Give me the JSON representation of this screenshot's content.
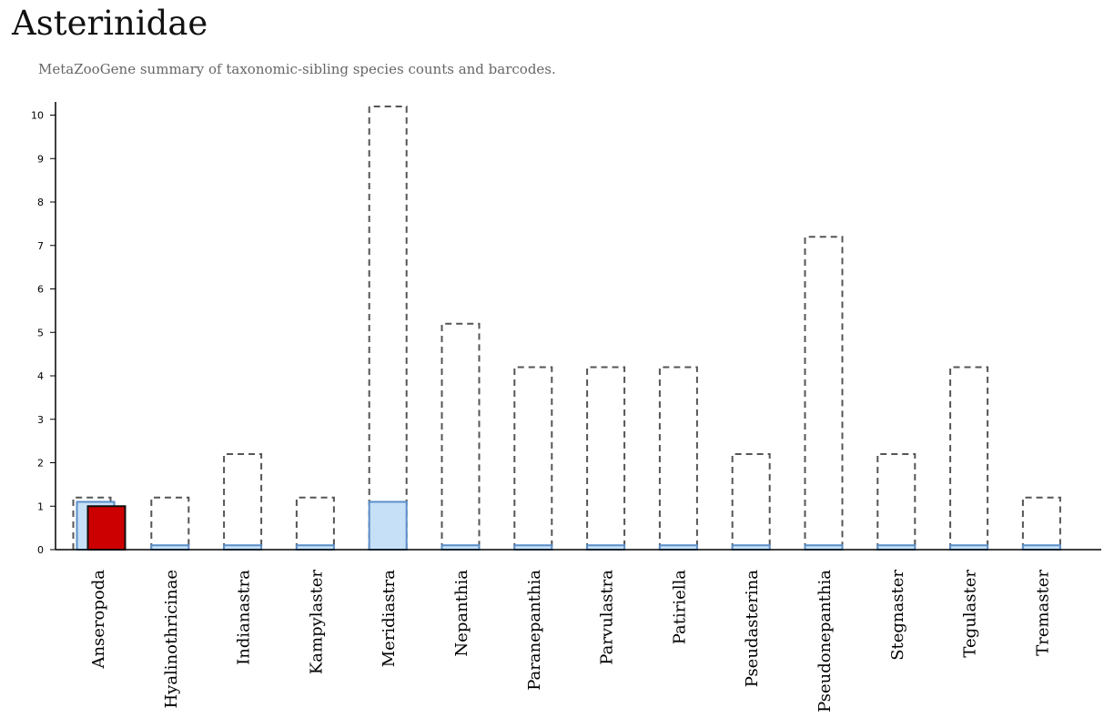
{
  "title": "Asterinidae",
  "subtitle": "MetaZooGene summary of taxonomic-sibling species counts and barcodes.",
  "colors": {
    "species_outline": "#555555",
    "barcode_fill": "#c6e0f7",
    "barcode_stroke": "#5b8fc9",
    "highlight_fill": "#cc0000",
    "highlight_stroke": "#111111",
    "axis": "#000000"
  },
  "chart_data": {
    "type": "bar",
    "title": "Asterinidae",
    "xlabel": "",
    "ylabel": "",
    "ylim": [
      0,
      10.3
    ],
    "yticks": [
      0,
      1,
      2,
      3,
      4,
      5,
      6,
      7,
      8,
      9,
      10
    ],
    "grid": false,
    "categories": [
      "Anseropoda",
      "Hyalinothricinae",
      "Indianastra",
      "Kampylaster",
      "Meridiastra",
      "Nepanthia",
      "Paranepanthia",
      "Parvulastra",
      "Patiriella",
      "Pseudasterina",
      "Pseudonepanthia",
      "Stegnaster",
      "Tegulaster",
      "Tremaster"
    ],
    "series": [
      {
        "style": "dashed-outline",
        "values": [
          1.2,
          1.2,
          2.2,
          1.2,
          10.2,
          5.2,
          4.2,
          4.2,
          4.2,
          2.2,
          7.2,
          2.2,
          4.2,
          1.2
        ]
      },
      {
        "style": "light-blue",
        "values": [
          1.1,
          0.1,
          0.1,
          0.1,
          1.1,
          0.1,
          0.1,
          0.1,
          0.1,
          0.1,
          0.1,
          0.1,
          0.1,
          0.1
        ]
      },
      {
        "style": "red-highlight",
        "values": [
          1,
          null,
          null,
          null,
          null,
          null,
          null,
          null,
          null,
          null,
          null,
          null,
          null,
          null
        ]
      }
    ]
  }
}
